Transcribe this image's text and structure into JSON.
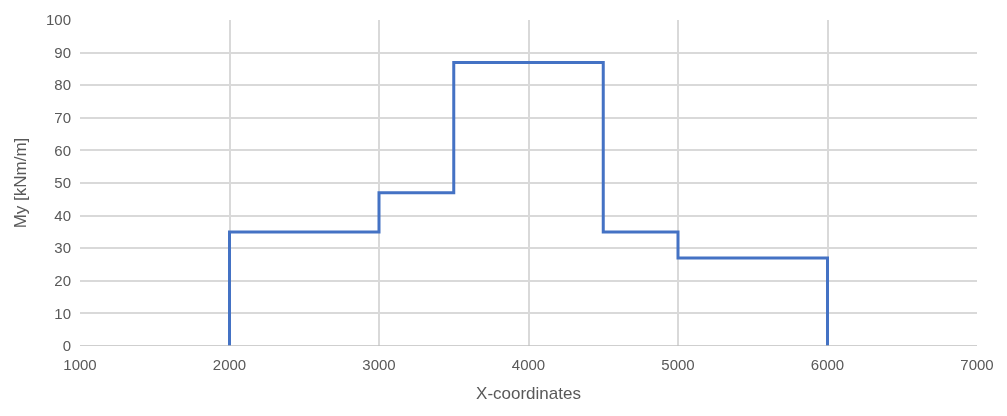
{
  "chart_data": {
    "type": "line",
    "xlabel": "X-coordinates",
    "ylabel": "My [kNm/m]",
    "x": [
      2000,
      2000,
      3000,
      3000,
      3500,
      3500,
      4500,
      4500,
      5000,
      5000,
      6000,
      6000
    ],
    "series": [
      {
        "color": "#4472c4",
        "values": [
          0,
          35,
          35,
          47,
          47,
          87,
          87,
          35,
          35,
          27,
          27,
          0
        ]
      }
    ],
    "xlim": [
      1000,
      7000
    ],
    "xticks": [
      1000,
      2000,
      3000,
      4000,
      5000,
      6000,
      7000
    ],
    "ylim": [
      0,
      100
    ],
    "yticks": [
      0,
      10,
      20,
      30,
      40,
      50,
      60,
      70,
      80,
      90,
      100
    ],
    "grid": true,
    "marker": "none",
    "line_style": "solid"
  }
}
